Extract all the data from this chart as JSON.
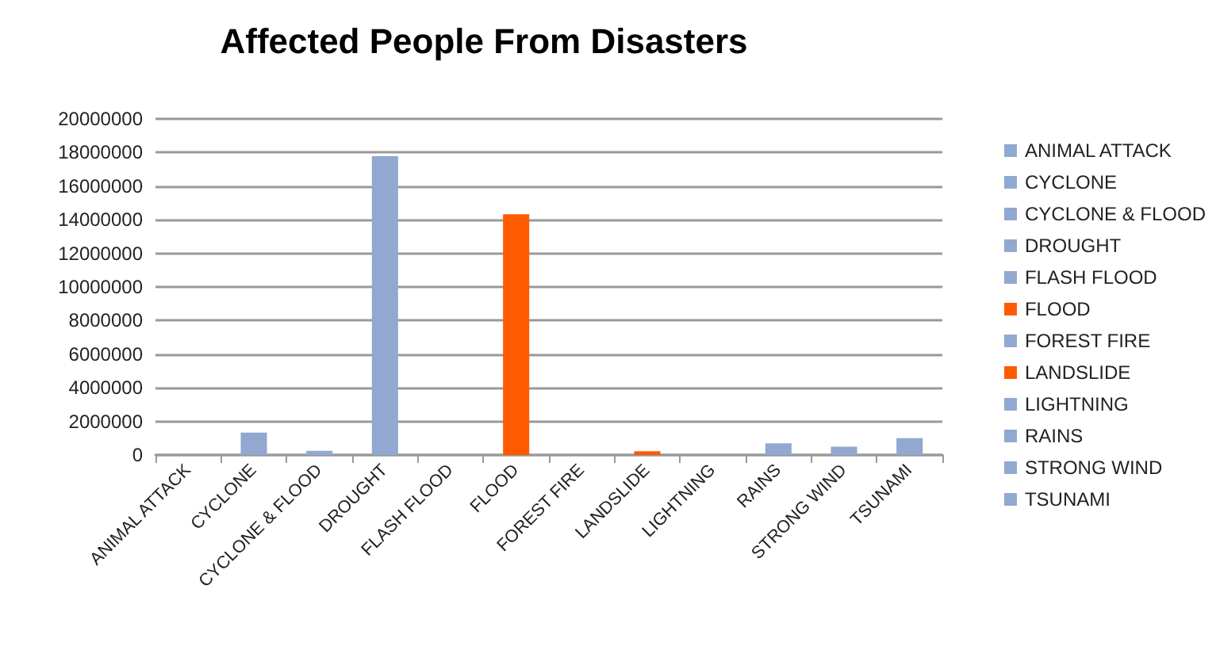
{
  "chart_data": {
    "type": "bar",
    "title": "Affected People From Disasters",
    "categories": [
      "ANIMAL ATTACK",
      "CYCLONE",
      "CYCLONE & FLOOD",
      "DROUGHT",
      "FLASH FLOOD",
      "FLOOD",
      "FOREST FIRE",
      "LANDSLIDE",
      "LIGHTNING",
      "RAINS",
      "STRONG WIND",
      "TSUNAMI"
    ],
    "series": [
      {
        "name": "ANIMAL ATTACK",
        "color": "#91a8d0",
        "values": [
          0,
          null,
          null,
          null,
          null,
          null,
          null,
          null,
          null,
          null,
          null,
          null
        ]
      },
      {
        "name": "CYCLONE",
        "color": "#91a8d0",
        "values": [
          null,
          1330000,
          null,
          null,
          null,
          null,
          null,
          null,
          null,
          null,
          null,
          null
        ]
      },
      {
        "name": "CYCLONE & FLOOD",
        "color": "#91a8d0",
        "values": [
          null,
          null,
          250000,
          null,
          null,
          null,
          null,
          null,
          null,
          null,
          null,
          null
        ]
      },
      {
        "name": "DROUGHT",
        "color": "#91a8d0",
        "values": [
          null,
          null,
          null,
          17780000,
          null,
          null,
          null,
          null,
          null,
          null,
          null,
          null
        ]
      },
      {
        "name": "FLASH FLOOD",
        "color": "#91a8d0",
        "values": [
          null,
          null,
          null,
          null,
          0,
          null,
          null,
          null,
          null,
          null,
          null,
          null
        ]
      },
      {
        "name": "FLOOD",
        "color": "#ff5a00",
        "values": [
          null,
          null,
          null,
          null,
          null,
          14330000,
          null,
          null,
          null,
          null,
          null,
          null
        ]
      },
      {
        "name": "FOREST FIRE",
        "color": "#91a8d0",
        "values": [
          null,
          null,
          null,
          null,
          null,
          null,
          0,
          null,
          null,
          null,
          null,
          null
        ]
      },
      {
        "name": "LANDSLIDE",
        "color": "#ff5a00",
        "values": [
          null,
          null,
          null,
          null,
          null,
          null,
          null,
          220000,
          null,
          null,
          null,
          null
        ]
      },
      {
        "name": "LIGHTNING",
        "color": "#91a8d0",
        "values": [
          null,
          null,
          null,
          null,
          null,
          null,
          null,
          null,
          0,
          null,
          null,
          null
        ]
      },
      {
        "name": "RAINS",
        "color": "#91a8d0",
        "values": [
          null,
          null,
          null,
          null,
          null,
          null,
          null,
          null,
          null,
          700000,
          null,
          null
        ]
      },
      {
        "name": "STRONG WIND",
        "color": "#91a8d0",
        "values": [
          null,
          null,
          null,
          null,
          null,
          null,
          null,
          null,
          null,
          null,
          500000,
          null
        ]
      },
      {
        "name": "TSUNAMI",
        "color": "#91a8d0",
        "values": [
          null,
          null,
          null,
          null,
          null,
          null,
          null,
          null,
          null,
          null,
          null,
          1000000
        ]
      }
    ],
    "ylim": [
      0,
      20000000
    ],
    "yticks": [
      0,
      2000000,
      4000000,
      6000000,
      8000000,
      10000000,
      12000000,
      14000000,
      16000000,
      18000000,
      20000000
    ],
    "grid": "y",
    "legend": "right"
  }
}
